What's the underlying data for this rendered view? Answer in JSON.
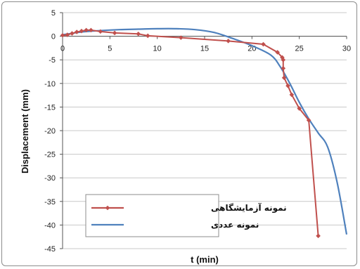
{
  "chart_data": {
    "type": "line",
    "xlabel": "t (min)",
    "ylabel": "Displacement (mm)",
    "xlim": [
      0,
      30
    ],
    "ylim": [
      -45,
      5
    ],
    "x_ticks": [
      0,
      5,
      10,
      15,
      20,
      25,
      30
    ],
    "y_ticks": [
      5,
      0,
      -5,
      -10,
      -15,
      -20,
      -25,
      -30,
      -35,
      -40,
      -45
    ],
    "grid": true,
    "legend_position": "bottom-left",
    "series": [
      {
        "name": "نمونه آزمایشگاهی",
        "color": "#c0504d",
        "marker": "diamond",
        "points": [
          [
            0,
            0.2
          ],
          [
            0.5,
            0.3
          ],
          [
            1,
            0.6
          ],
          [
            1.5,
            0.9
          ],
          [
            2,
            1.1
          ],
          [
            2.5,
            1.3
          ],
          [
            3,
            1.3
          ],
          [
            4,
            1.0
          ],
          [
            5.5,
            0.7
          ],
          [
            8,
            0.5
          ],
          [
            9,
            0.1
          ],
          [
            12.5,
            -0.3
          ],
          [
            17.5,
            -1.0
          ],
          [
            21.2,
            -1.7
          ],
          [
            22.7,
            -3.4
          ],
          [
            23.2,
            -4.5
          ],
          [
            23.3,
            -5.0
          ],
          [
            23.3,
            -6.8
          ],
          [
            23.4,
            -8.8
          ],
          [
            23.8,
            -10.5
          ],
          [
            24.2,
            -12.4
          ],
          [
            25,
            -15.3
          ],
          [
            26,
            -17.8
          ],
          [
            27,
            -42.3
          ]
        ]
      },
      {
        "name": "نمونه عددی",
        "color": "#4f81bd",
        "marker": "none",
        "points": [
          [
            0,
            0.3
          ],
          [
            2,
            0.9
          ],
          [
            4,
            1.2
          ],
          [
            6,
            1.4
          ],
          [
            8,
            1.5
          ],
          [
            10,
            1.6
          ],
          [
            12,
            1.6
          ],
          [
            14,
            1.4
          ],
          [
            16,
            0.8
          ],
          [
            18,
            -0.5
          ],
          [
            20,
            -2.0
          ],
          [
            22,
            -4.0
          ],
          [
            23,
            -6.5
          ],
          [
            24,
            -10.0
          ],
          [
            25,
            -14.0
          ],
          [
            26,
            -17.5
          ],
          [
            27,
            -20.5
          ],
          [
            28,
            -23.5
          ],
          [
            29,
            -31.0
          ],
          [
            30,
            -42.0
          ]
        ]
      }
    ]
  }
}
